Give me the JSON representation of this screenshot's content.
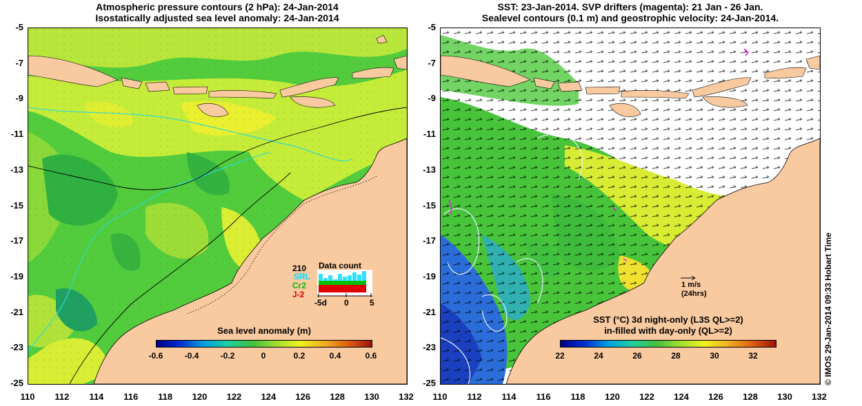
{
  "left_panel": {
    "title_line1": "Atmospheric pressure contours (2 hPa): 24-Jan-2014",
    "title_line2": "Isostatically adjusted sea level anomaly: 24-Jan-2014",
    "colorbar": {
      "title": "Sea level anomaly (m)",
      "ticks": [
        "-0.6",
        "-0.4",
        "-0.2",
        "0",
        "0.2",
        "0.4",
        "0.6"
      ]
    },
    "data_count": {
      "title": "Data count",
      "number": "210",
      "labels": [
        "SRL",
        "Cr2",
        "J-2"
      ],
      "label_colors": [
        "#00e0ff",
        "#00c000",
        "#e00000"
      ],
      "x_ticks": [
        "-5d",
        "0",
        "5"
      ]
    }
  },
  "right_panel": {
    "title_line1": "SST: 23-Jan-2014. SVP drifters (magenta): 21 Jan - 26 Jan.",
    "title_line2": "Sealevel contours (0.1 m) and geostrophic velocity: 24-Jan-2014.",
    "colorbar": {
      "title_line1": "SST (°C)  3d night-only (L3S QL>=2)",
      "title_line2": "in-filled with day-only (QL>=2)",
      "ticks": [
        "22",
        "24",
        "26",
        "28",
        "30",
        "32"
      ]
    },
    "velocity_scale": {
      "label": "1 m/s",
      "sublabel": "(24hrs)"
    }
  },
  "axes": {
    "x_ticks": [
      "110",
      "112",
      "114",
      "116",
      "118",
      "120",
      "122",
      "124",
      "126",
      "128",
      "130",
      "132"
    ],
    "y_ticks": [
      "-5",
      "-7",
      "-9",
      "-11",
      "-13",
      "-15",
      "-17",
      "-19",
      "-21",
      "-23",
      "-25"
    ]
  },
  "credit": "© IMOS 29-Jan-2014 09:33 Hobart Time",
  "colors": {
    "land": "#f9c9a0",
    "ocean_green": "#44c63a",
    "ocean_yellow": "#e5f030",
    "sst_blue": "#2a6cd8",
    "contour_cyan": "#30d8d0"
  }
}
